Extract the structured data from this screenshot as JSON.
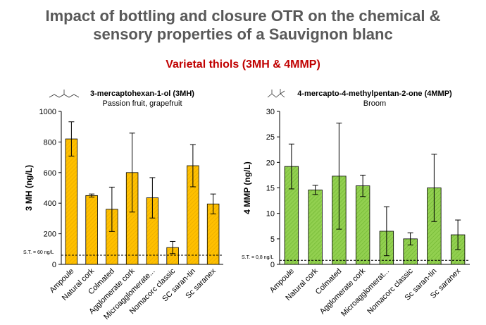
{
  "header": {
    "title_line1": "Impact of bottling and closure OTR on the chemical &",
    "title_line2": "sensory properties of a Sauvignon blanc",
    "subtitle": "Varietal thiols (3MH & 4MMP)"
  },
  "colors": {
    "title": "#595959",
    "subtitle": "#c00000",
    "bar_3mh": "#ffc000",
    "bar_4mmp": "#92d050"
  },
  "chart_data": [
    {
      "type": "bar",
      "title": "3-mercaptohexan-1-ol (3MH)",
      "subtitle": "Passion fruit, grapefruit",
      "ylabel": "3 MH (ng/L)",
      "xlabel": "",
      "ylim": [
        0,
        1000
      ],
      "yticks": [
        0,
        200,
        400,
        600,
        800,
        1000
      ],
      "categories": [
        "Ampoule",
        "Natural cork",
        "Colmated",
        "Agglomerate cork",
        "Microagglomerate...",
        "Nomacorc classic",
        "SC saran-tin",
        "Sc saranex"
      ],
      "values": [
        820,
        450,
        360,
        600,
        435,
        110,
        645,
        395
      ],
      "errors": [
        112,
        10,
        145,
        258,
        132,
        40,
        138,
        65
      ],
      "threshold": {
        "label": "S.T. = 60 ng/L",
        "value": 60
      },
      "bar_color": "#ffc000"
    },
    {
      "type": "bar",
      "title": "4-mercapto-4-methylpentan-2-one (4MMP)",
      "subtitle": "Broom",
      "ylabel": "4 MMP (ng/L)",
      "xlabel": "",
      "ylim": [
        0,
        30
      ],
      "yticks": [
        0,
        5,
        10,
        15,
        20,
        25,
        30
      ],
      "categories": [
        "Ampoule",
        "Natural cork",
        "Colmated",
        "Agglomerate cork",
        "Microagglomerat...",
        "Nomacorc classic",
        "Sc saran-tin",
        "Sc saranex"
      ],
      "values": [
        19.2,
        14.6,
        17.3,
        15.4,
        6.5,
        5.0,
        15.0,
        5.8
      ],
      "errors": [
        4.4,
        0.9,
        10.4,
        2.1,
        4.8,
        1.2,
        6.6,
        2.9
      ],
      "threshold": {
        "label": "S.T. = 0,8 ng/L",
        "value": 0.8
      },
      "bar_color": "#92d050"
    }
  ]
}
